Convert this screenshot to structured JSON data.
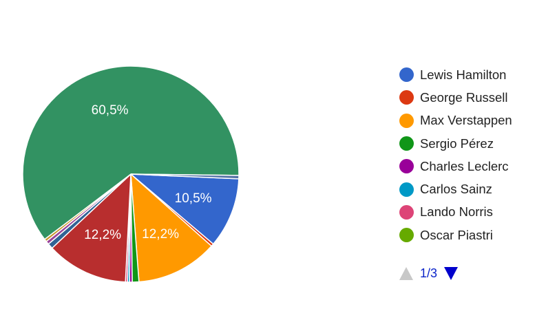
{
  "chart_data": {
    "type": "pie",
    "series": [
      {
        "name": "Lewis Hamilton",
        "value": 10.5,
        "color": "#3366cc"
      },
      {
        "name": "George Russell",
        "value": 0.4,
        "color": "#dc3912"
      },
      {
        "name": "Max Verstappen",
        "value": 12.2,
        "color": "#ff9900"
      },
      {
        "name": "Sergio Pérez",
        "value": 1.0,
        "color": "#109618"
      },
      {
        "name": "Charles Leclerc",
        "value": 0.4,
        "color": "#990099"
      },
      {
        "name": "Carlos Sainz",
        "value": 0.3,
        "color": "#0099c6"
      },
      {
        "name": "Lando Norris",
        "value": 0.3,
        "color": "#dd4477"
      },
      {
        "name": "Oscar Piastri",
        "value": 0.0,
        "color": "#66aa00"
      },
      {
        "name": "",
        "value": 12.2,
        "color": "#b82e2e"
      },
      {
        "name": "",
        "value": 0.8,
        "color": "#316395"
      },
      {
        "name": "",
        "value": 0.5,
        "color": "#994499"
      },
      {
        "name": "",
        "value": 0.4,
        "color": "#c5962c"
      },
      {
        "name": "",
        "value": 60.5,
        "color": "#329262"
      },
      {
        "name": "",
        "value": 0.5,
        "color": "#5574a6"
      }
    ],
    "slice_labels": [
      {
        "index": 0,
        "text": "10,5%"
      },
      {
        "index": 2,
        "text": "12,2%"
      },
      {
        "index": 8,
        "text": "12,2%"
      },
      {
        "index": 12,
        "text": "60,5%"
      }
    ],
    "legend_placement": "right"
  },
  "legend": {
    "items": [
      {
        "label": "Lewis Hamilton",
        "color": "#3366cc"
      },
      {
        "label": "George Russell",
        "color": "#dc3912"
      },
      {
        "label": "Max Verstappen",
        "color": "#ff9900"
      },
      {
        "label": "Sergio Pérez",
        "color": "#109618"
      },
      {
        "label": "Charles Leclerc",
        "color": "#990099"
      },
      {
        "label": "Carlos Sainz",
        "color": "#0099c6"
      },
      {
        "label": "Lando Norris",
        "color": "#dd4477"
      },
      {
        "label": "Oscar Piastri",
        "color": "#66aa00"
      }
    ]
  },
  "pager": {
    "text": "1/3",
    "prev_icon": "triangle-up",
    "next_icon": "triangle-down"
  }
}
